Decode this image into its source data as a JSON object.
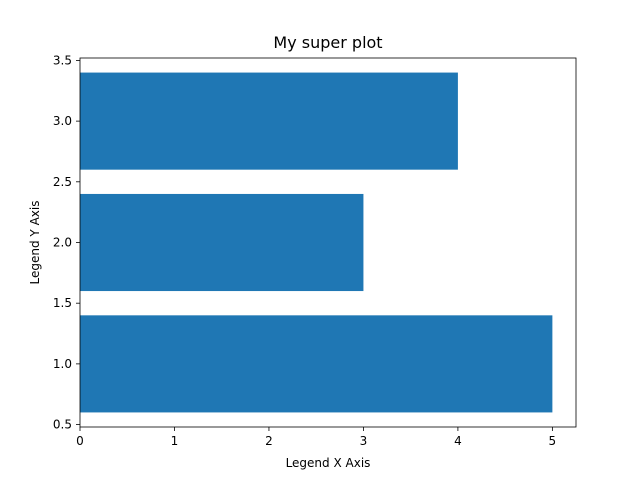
{
  "chart_data": {
    "type": "bar",
    "orientation": "horizontal",
    "title": "My super plot",
    "xlabel": "Legend X Axis",
    "ylabel": "Legend Y Axis",
    "bars": [
      {
        "y": 1,
        "value": 5
      },
      {
        "y": 2,
        "value": 3
      },
      {
        "y": 3,
        "value": 4
      }
    ],
    "bar_color": "#1f77b4",
    "xlim": [
      0,
      5.25
    ],
    "ylim": [
      0.48,
      3.52
    ],
    "xticks": [
      {
        "value": 0,
        "label": "0"
      },
      {
        "value": 1,
        "label": "1"
      },
      {
        "value": 2,
        "label": "2"
      },
      {
        "value": 3,
        "label": "3"
      },
      {
        "value": 4,
        "label": "4"
      },
      {
        "value": 5,
        "label": "5"
      }
    ],
    "yticks": [
      {
        "value": 0.5,
        "label": "0.5"
      },
      {
        "value": 1.0,
        "label": "1.0"
      },
      {
        "value": 1.5,
        "label": "1.5"
      },
      {
        "value": 2.0,
        "label": "2.0"
      },
      {
        "value": 2.5,
        "label": "2.5"
      },
      {
        "value": 3.0,
        "label": "3.0"
      },
      {
        "value": 3.5,
        "label": "3.5"
      }
    ],
    "grid": false,
    "legend": "none"
  }
}
